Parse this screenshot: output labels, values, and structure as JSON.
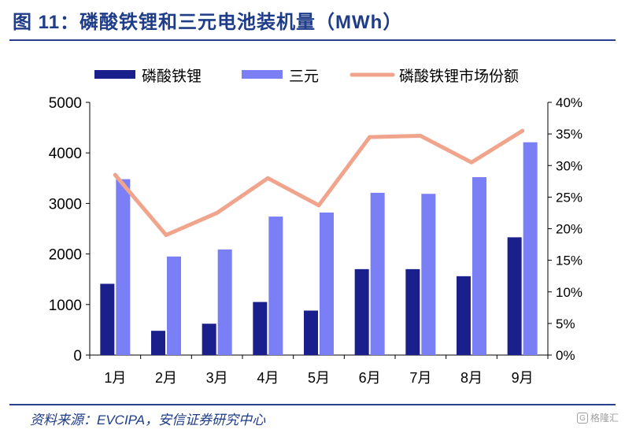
{
  "title": "图 11：磷酸铁锂和三元电池装机量（MWh）",
  "source": "资料来源：EVCIPA，安信证券研究中心",
  "watermark": "格隆汇",
  "colors": {
    "lfp": "#1a1f8c",
    "ncm": "#7b7ff5",
    "share": "#f0a48c",
    "title": "#1f3c88"
  },
  "chart_data": {
    "type": "bar",
    "categories": [
      "1月",
      "2月",
      "3月",
      "4月",
      "5月",
      "6月",
      "7月",
      "8月",
      "9月"
    ],
    "series": [
      {
        "name": "磷酸铁锂",
        "type": "bar",
        "axis": "left",
        "values": [
          1410,
          480,
          620,
          1050,
          880,
          1700,
          1700,
          1560,
          2330
        ]
      },
      {
        "name": "三元",
        "type": "bar",
        "axis": "left",
        "values": [
          3480,
          1950,
          2090,
          2740,
          2820,
          3210,
          3190,
          3520,
          4210
        ]
      },
      {
        "name": "磷酸铁锂市场份额",
        "type": "line",
        "axis": "right",
        "values": [
          0.285,
          0.19,
          0.225,
          0.28,
          0.237,
          0.345,
          0.347,
          0.305,
          0.355
        ]
      }
    ],
    "yleft": {
      "min": 0,
      "max": 5000,
      "ticks": [
        0,
        1000,
        2000,
        3000,
        4000,
        5000
      ]
    },
    "yright": {
      "min": 0,
      "max": 0.4,
      "ticks": [
        "0%",
        "5%",
        "10%",
        "15%",
        "20%",
        "25%",
        "30%",
        "35%",
        "40%"
      ]
    },
    "legend_position": "top",
    "grid": false
  }
}
